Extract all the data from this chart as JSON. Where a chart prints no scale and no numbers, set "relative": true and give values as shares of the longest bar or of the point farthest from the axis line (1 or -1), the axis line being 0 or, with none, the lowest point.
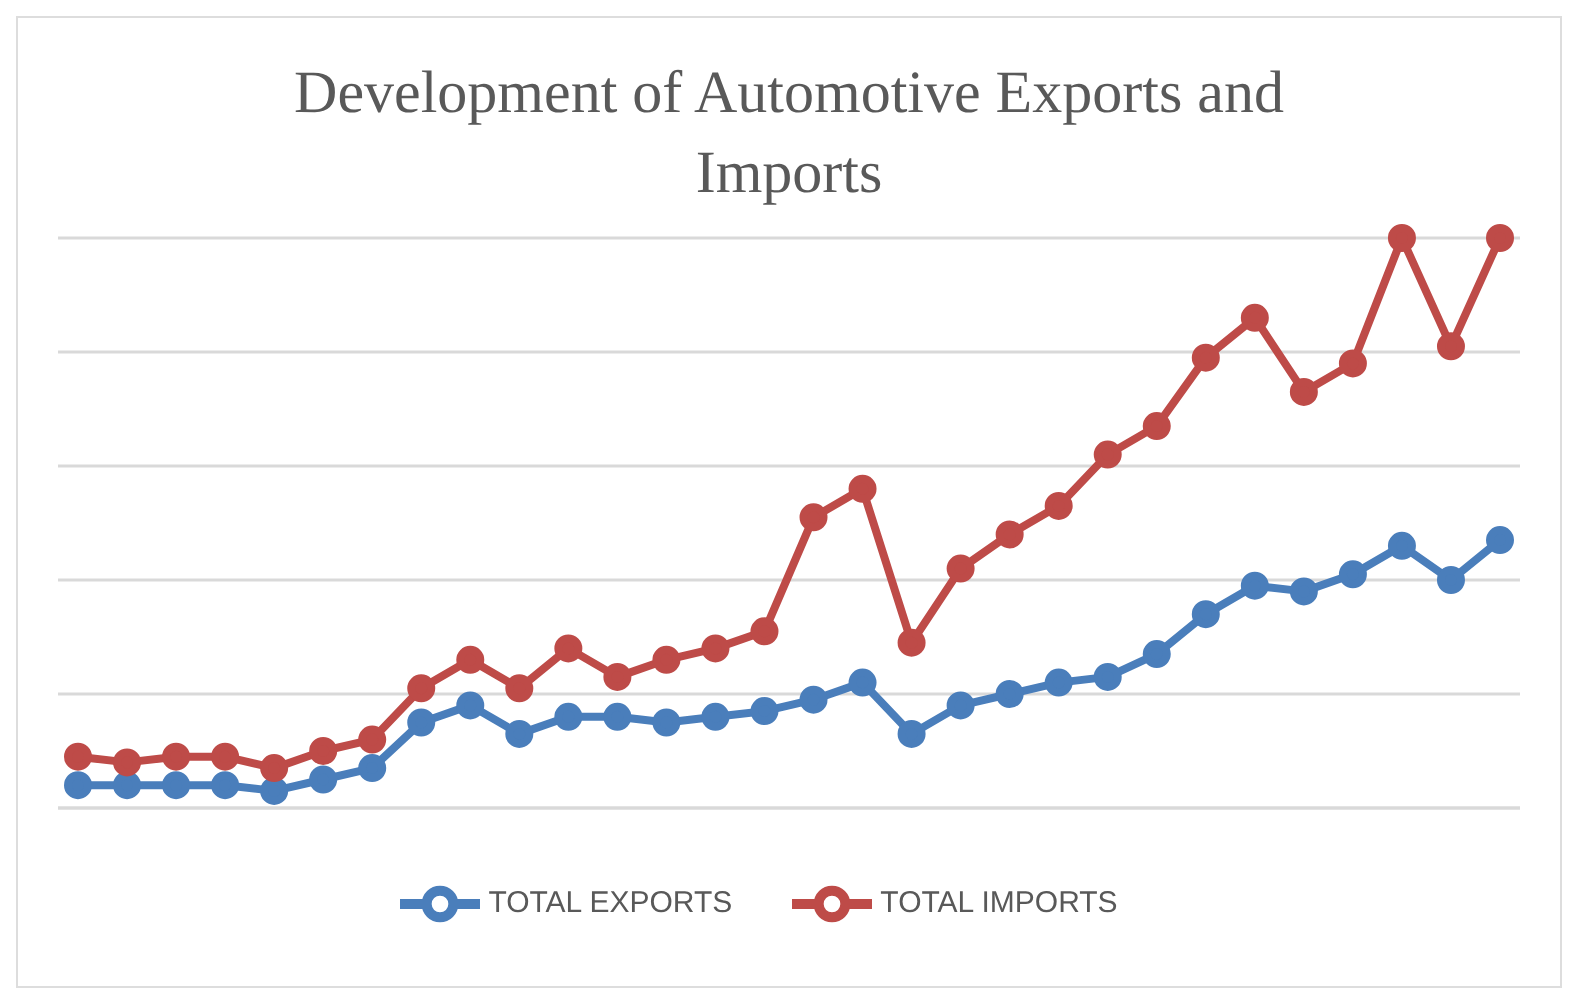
{
  "chart_data": {
    "type": "line",
    "title": "Development of Automotive Exports and Imports",
    "relative": true,
    "categories": [
      null,
      null,
      null,
      null,
      null,
      null,
      null,
      null,
      null,
      null,
      null,
      null,
      null,
      null,
      null,
      null,
      null,
      null,
      null,
      null,
      null,
      null,
      null,
      null,
      null,
      null,
      null,
      null,
      null,
      null
    ],
    "series": [
      {
        "name": "TOTAL EXPORTS",
        "color": "#4a7ebb",
        "values": [
          0.04,
          0.04,
          0.04,
          0.04,
          0.03,
          0.05,
          0.07,
          0.15,
          0.18,
          0.13,
          0.16,
          0.16,
          0.15,
          0.16,
          0.17,
          0.19,
          0.22,
          0.13,
          0.18,
          0.2,
          0.22,
          0.23,
          0.27,
          0.34,
          0.39,
          0.38,
          0.41,
          0.46,
          0.4,
          0.47
        ]
      },
      {
        "name": "TOTAL IMPORTS",
        "color": "#be4b48",
        "values": [
          0.09,
          0.08,
          0.09,
          0.09,
          0.07,
          0.1,
          0.12,
          0.21,
          0.26,
          0.21,
          0.28,
          0.23,
          0.26,
          0.28,
          0.31,
          0.51,
          0.56,
          0.29,
          0.42,
          0.48,
          0.53,
          0.62,
          0.67,
          0.79,
          0.86,
          0.73,
          0.78,
          1,
          0.81,
          1
        ]
      }
    ],
    "grid": "y",
    "legend": "bottom",
    "marker": "circle",
    "line_style": "solid"
  }
}
